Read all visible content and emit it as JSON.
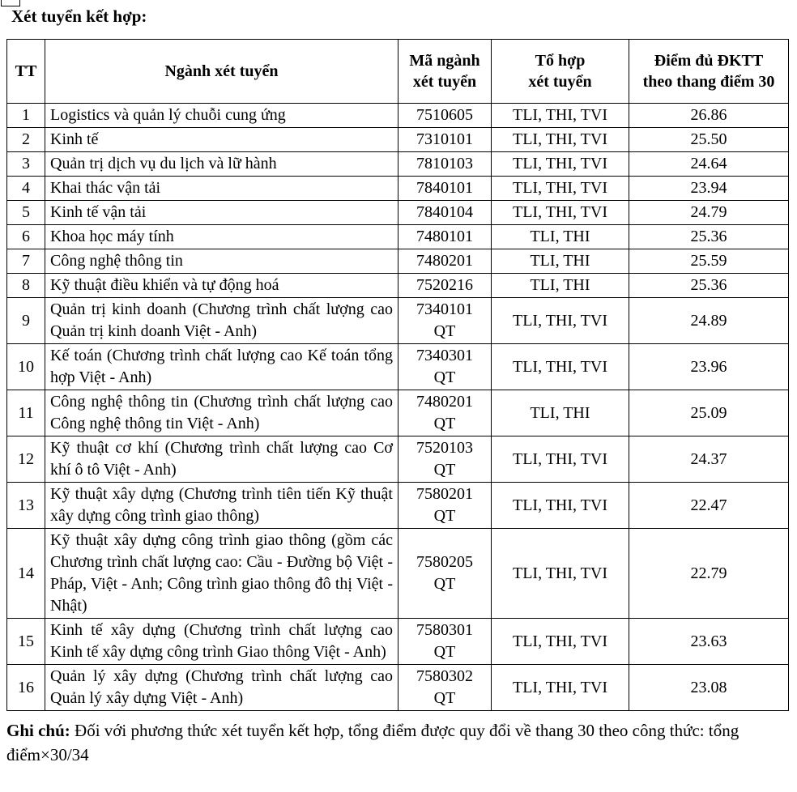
{
  "title": "Xét tuyển kết hợp:",
  "table": {
    "headers": [
      "TT",
      "Ngành xét tuyển",
      "Mã ngành\nxét tuyển",
      "Tổ hợp\nxét tuyển",
      "Điểm đủ ĐKTT\ntheo thang điểm 30"
    ],
    "rows": [
      {
        "tt": "1",
        "nganh": "Logistics và quản lý chuỗi cung ứng",
        "ma": "7510605",
        "tohop": "TLI, THI, TVI",
        "diem": "26.86"
      },
      {
        "tt": "2",
        "nganh": "Kinh tế",
        "ma": "7310101",
        "tohop": "TLI, THI, TVI",
        "diem": "25.50"
      },
      {
        "tt": "3",
        "nganh": "Quản trị dịch vụ du lịch và lữ hành",
        "ma": "7810103",
        "tohop": "TLI, THI, TVI",
        "diem": "24.64"
      },
      {
        "tt": "4",
        "nganh": "Khai thác vận tải",
        "ma": "7840101",
        "tohop": "TLI, THI, TVI",
        "diem": "23.94"
      },
      {
        "tt": "5",
        "nganh": "Kinh tế vận tải",
        "ma": "7840104",
        "tohop": "TLI, THI, TVI",
        "diem": "24.79"
      },
      {
        "tt": "6",
        "nganh": "Khoa học máy tính",
        "ma": "7480101",
        "tohop": "TLI, THI",
        "diem": "25.36"
      },
      {
        "tt": "7",
        "nganh": "Công nghệ thông tin",
        "ma": "7480201",
        "tohop": "TLI, THI",
        "diem": "25.59"
      },
      {
        "tt": "8",
        "nganh": "Kỹ thuật điều khiển và tự động hoá",
        "ma": "7520216",
        "tohop": "TLI, THI",
        "diem": "25.36"
      },
      {
        "tt": "9",
        "nganh": "Quản trị kinh doanh (Chương trình chất lượng cao Quản trị kinh doanh Việt - Anh)",
        "ma": "7340101\nQT",
        "tohop": "TLI, THI, TVI",
        "diem": "24.89"
      },
      {
        "tt": "10",
        "nganh": "Kế toán (Chương trình chất lượng cao Kế toán tổng hợp Việt - Anh)",
        "ma": "7340301\nQT",
        "tohop": "TLI, THI, TVI",
        "diem": "23.96"
      },
      {
        "tt": "11",
        "nganh": "Công nghệ thông tin (Chương trình chất lượng cao Công nghệ thông tin Việt - Anh)",
        "ma": "7480201\nQT",
        "tohop": "TLI, THI",
        "diem": "25.09"
      },
      {
        "tt": "12",
        "nganh": "Kỹ thuật cơ khí (Chương trình chất lượng cao Cơ khí ô tô Việt - Anh)",
        "ma": "7520103\nQT",
        "tohop": "TLI, THI, TVI",
        "diem": "24.37"
      },
      {
        "tt": "13",
        "nganh": "Kỹ thuật xây dựng (Chương trình tiên tiến Kỹ thuật xây dựng công trình giao thông)",
        "ma": "7580201\nQT",
        "tohop": "TLI, THI, TVI",
        "diem": "22.47"
      },
      {
        "tt": "14",
        "nganh": "Kỹ thuật xây dựng công trình giao thông (gồm các Chương trình chất lượng cao: Cầu - Đường bộ Việt - Pháp, Việt - Anh; Công trình giao thông đô thị Việt - Nhật)",
        "ma": "7580205\nQT",
        "tohop": "TLI, THI, TVI",
        "diem": "22.79"
      },
      {
        "tt": "15",
        "nganh": "Kinh tế xây dựng (Chương trình chất lượng cao Kinh tế xây dựng công trình Giao thông Việt - Anh)",
        "ma": "7580301\nQT",
        "tohop": "TLI, THI, TVI",
        "diem": "23.63"
      },
      {
        "tt": "16",
        "nganh": "Quản lý xây dựng (Chương trình chất lượng cao Quản lý xây dựng Việt - Anh)",
        "ma": "7580302\nQT",
        "tohop": "TLI, THI, TVI",
        "diem": "23.08"
      }
    ]
  },
  "note": {
    "label": "Ghi chú:",
    "text": " Đối với phương thức xét tuyển kết hợp, tổng điểm được quy đổi về thang 30 theo công thức: tổng điểm×30/34"
  }
}
